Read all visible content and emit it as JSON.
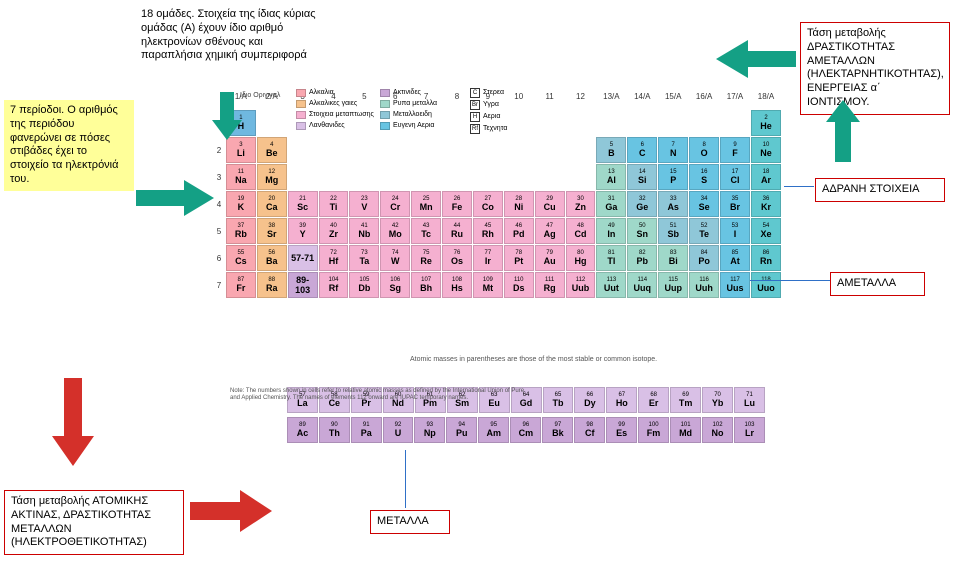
{
  "colors": {
    "alkali": "#f9a7b0",
    "alkaline": "#f6c28c",
    "transition": "#f5b0d0",
    "post": "#9fd8c9",
    "metalloid": "#8fc7d8",
    "nonmetal": "#68c4e2",
    "halogen": "#68c4e2",
    "noble": "#5fc8cf",
    "lanth": "#d9c0e6",
    "act": "#c9a7d6",
    "h": "#6fb8e0",
    "border_red": "#cc0000",
    "arrow_green": "#14a085",
    "arrow_red": "#d4302a",
    "yellow": "#ffff99",
    "conn": "#2f70c7"
  },
  "boxes": {
    "periods": "7 περίοδοι. Ο αριθμός της περιόδου φανερώνει σε πόσες στιβάδες έχει το στοιχείο τα ηλεκτρόνιά του.",
    "groups": "18 ομάδες. Στοιχεία της ίδιας κύριας ομάδας (Α) έχουν ίδιο αριθμό ηλεκτρονίων σθένους και παραπλήσια χημική συμπεριφορά",
    "nonmetal_trend": "Τάση μεταβολής ΔΡΑΣΤΙΚΟΤΗΤΑΣ ΑΜΕΤΑΛΛΩΝ (ΗΛΕΚΤΑΡΝΗΤΙΚΟΤΗΤΑΣ), ΕΝΕΡΓΕΙΑΣ α΄ ΙΟΝΤΙΣΜΟΥ.",
    "noble": "ΑΔΡΑΝΗ ΣΤΟΙΧΕΙΑ",
    "nonmetals": "ΑΜΕΤΑΛΛΑ",
    "metals": "ΜΕΤΑΛΛΑ",
    "metal_trend": "Τάση μεταβολής ΑΤΟΜΙΚΗΣ ΑΚΤΙΝΑΣ, ΔΡΑΣΤΙΚΟΤΗΤΑΣ ΜΕΤΑΛΛΩΝ (ΗΛΕΚΤΡΟΘΕΤΙΚΟΤΗΤΑΣ)"
  },
  "legend": {
    "title": "Ιδιο\nΟριγιναλ",
    "col1": [
      {
        "c": "#f9a7b0",
        "t": "Αλκαλια"
      },
      {
        "c": "#f6c28c",
        "t": "Αλκαλικες γαιες"
      },
      {
        "c": "#f5b0d0",
        "t": "Στοιχεια μεταπτωσης"
      },
      {
        "c": "#d9c0e6",
        "t": "Λανθανιδες"
      }
    ],
    "col2": [
      {
        "c": "#c9a7d6",
        "t": "Ακτινιδες"
      },
      {
        "c": "#9fd8c9",
        "t": "Ρυπα μεταλλα"
      },
      {
        "c": "#8fc7d8",
        "t": "Μεταλλοειδη"
      },
      {
        "c": "#68c4e2",
        "t": "Ευγενη Αερια"
      }
    ],
    "col3": [
      {
        "s": "C",
        "t": "Στερεα"
      },
      {
        "s": "Br",
        "t": "Υγρα"
      },
      {
        "s": "H",
        "t": "Αερια"
      },
      {
        "s": "Rf",
        "t": "Τεχνητα"
      }
    ]
  },
  "groups": [
    "1/A",
    "2/A",
    "3",
    "4",
    "5",
    "6",
    "7",
    "8",
    "9",
    "10",
    "11",
    "12",
    "13/A",
    "14/A",
    "15/A",
    "16/A",
    "17/A",
    "18/A"
  ],
  "elements": [
    [
      {
        "n": 1,
        "s": "H",
        "c": "h"
      },
      null,
      null,
      null,
      null,
      null,
      null,
      null,
      null,
      null,
      null,
      null,
      null,
      null,
      null,
      null,
      null,
      {
        "n": 2,
        "s": "He",
        "c": "noble"
      }
    ],
    [
      {
        "n": 3,
        "s": "Li",
        "c": "alkali"
      },
      {
        "n": 4,
        "s": "Be",
        "c": "alkaline"
      },
      null,
      null,
      null,
      null,
      null,
      null,
      null,
      null,
      null,
      null,
      {
        "n": 5,
        "s": "B",
        "c": "metalloid"
      },
      {
        "n": 6,
        "s": "C",
        "c": "nonmetal"
      },
      {
        "n": 7,
        "s": "N",
        "c": "nonmetal"
      },
      {
        "n": 8,
        "s": "O",
        "c": "nonmetal"
      },
      {
        "n": 9,
        "s": "F",
        "c": "nonmetal"
      },
      {
        "n": 10,
        "s": "Ne",
        "c": "noble"
      }
    ],
    [
      {
        "n": 11,
        "s": "Na",
        "c": "alkali"
      },
      {
        "n": 12,
        "s": "Mg",
        "c": "alkaline"
      },
      null,
      null,
      null,
      null,
      null,
      null,
      null,
      null,
      null,
      null,
      {
        "n": 13,
        "s": "Al",
        "c": "post"
      },
      {
        "n": 14,
        "s": "Si",
        "c": "metalloid"
      },
      {
        "n": 15,
        "s": "P",
        "c": "nonmetal"
      },
      {
        "n": 16,
        "s": "S",
        "c": "nonmetal"
      },
      {
        "n": 17,
        "s": "Cl",
        "c": "nonmetal"
      },
      {
        "n": 18,
        "s": "Ar",
        "c": "noble"
      }
    ],
    [
      {
        "n": 19,
        "s": "K",
        "c": "alkali"
      },
      {
        "n": 20,
        "s": "Ca",
        "c": "alkaline"
      },
      {
        "n": 21,
        "s": "Sc",
        "c": "transition"
      },
      {
        "n": 22,
        "s": "Ti",
        "c": "transition"
      },
      {
        "n": 23,
        "s": "V",
        "c": "transition"
      },
      {
        "n": 24,
        "s": "Cr",
        "c": "transition"
      },
      {
        "n": 25,
        "s": "Mn",
        "c": "transition"
      },
      {
        "n": 26,
        "s": "Fe",
        "c": "transition"
      },
      {
        "n": 27,
        "s": "Co",
        "c": "transition"
      },
      {
        "n": 28,
        "s": "Ni",
        "c": "transition"
      },
      {
        "n": 29,
        "s": "Cu",
        "c": "transition"
      },
      {
        "n": 30,
        "s": "Zn",
        "c": "transition"
      },
      {
        "n": 31,
        "s": "Ga",
        "c": "post"
      },
      {
        "n": 32,
        "s": "Ge",
        "c": "metalloid"
      },
      {
        "n": 33,
        "s": "As",
        "c": "metalloid"
      },
      {
        "n": 34,
        "s": "Se",
        "c": "nonmetal"
      },
      {
        "n": 35,
        "s": "Br",
        "c": "nonmetal"
      },
      {
        "n": 36,
        "s": "Kr",
        "c": "noble"
      }
    ],
    [
      {
        "n": 37,
        "s": "Rb",
        "c": "alkali"
      },
      {
        "n": 38,
        "s": "Sr",
        "c": "alkaline"
      },
      {
        "n": 39,
        "s": "Y",
        "c": "transition"
      },
      {
        "n": 40,
        "s": "Zr",
        "c": "transition"
      },
      {
        "n": 41,
        "s": "Nb",
        "c": "transition"
      },
      {
        "n": 42,
        "s": "Mo",
        "c": "transition"
      },
      {
        "n": 43,
        "s": "Tc",
        "c": "transition"
      },
      {
        "n": 44,
        "s": "Ru",
        "c": "transition"
      },
      {
        "n": 45,
        "s": "Rh",
        "c": "transition"
      },
      {
        "n": 46,
        "s": "Pd",
        "c": "transition"
      },
      {
        "n": 47,
        "s": "Ag",
        "c": "transition"
      },
      {
        "n": 48,
        "s": "Cd",
        "c": "transition"
      },
      {
        "n": 49,
        "s": "In",
        "c": "post"
      },
      {
        "n": 50,
        "s": "Sn",
        "c": "post"
      },
      {
        "n": 51,
        "s": "Sb",
        "c": "metalloid"
      },
      {
        "n": 52,
        "s": "Te",
        "c": "metalloid"
      },
      {
        "n": 53,
        "s": "I",
        "c": "nonmetal"
      },
      {
        "n": 54,
        "s": "Xe",
        "c": "noble"
      }
    ],
    [
      {
        "n": 55,
        "s": "Cs",
        "c": "alkali"
      },
      {
        "n": 56,
        "s": "Ba",
        "c": "alkaline"
      },
      {
        "n": "",
        "s": "57-71",
        "c": "lanth"
      },
      {
        "n": 72,
        "s": "Hf",
        "c": "transition"
      },
      {
        "n": 73,
        "s": "Ta",
        "c": "transition"
      },
      {
        "n": 74,
        "s": "W",
        "c": "transition"
      },
      {
        "n": 75,
        "s": "Re",
        "c": "transition"
      },
      {
        "n": 76,
        "s": "Os",
        "c": "transition"
      },
      {
        "n": 77,
        "s": "Ir",
        "c": "transition"
      },
      {
        "n": 78,
        "s": "Pt",
        "c": "transition"
      },
      {
        "n": 79,
        "s": "Au",
        "c": "transition"
      },
      {
        "n": 80,
        "s": "Hg",
        "c": "transition"
      },
      {
        "n": 81,
        "s": "Tl",
        "c": "post"
      },
      {
        "n": 82,
        "s": "Pb",
        "c": "post"
      },
      {
        "n": 83,
        "s": "Bi",
        "c": "post"
      },
      {
        "n": 84,
        "s": "Po",
        "c": "metalloid"
      },
      {
        "n": 85,
        "s": "At",
        "c": "nonmetal"
      },
      {
        "n": 86,
        "s": "Rn",
        "c": "noble"
      }
    ],
    [
      {
        "n": 87,
        "s": "Fr",
        "c": "alkali"
      },
      {
        "n": 88,
        "s": "Ra",
        "c": "alkaline"
      },
      {
        "n": "",
        "s": "89-103",
        "c": "act"
      },
      {
        "n": 104,
        "s": "Rf",
        "c": "transition"
      },
      {
        "n": 105,
        "s": "Db",
        "c": "transition"
      },
      {
        "n": 106,
        "s": "Sg",
        "c": "transition"
      },
      {
        "n": 107,
        "s": "Bh",
        "c": "transition"
      },
      {
        "n": 108,
        "s": "Hs",
        "c": "transition"
      },
      {
        "n": 109,
        "s": "Mt",
        "c": "transition"
      },
      {
        "n": 110,
        "s": "Ds",
        "c": "transition"
      },
      {
        "n": 111,
        "s": "Rg",
        "c": "transition"
      },
      {
        "n": 112,
        "s": "Uub",
        "c": "transition"
      },
      {
        "n": 113,
        "s": "Uut",
        "c": "post"
      },
      {
        "n": 114,
        "s": "Uuq",
        "c": "post"
      },
      {
        "n": 115,
        "s": "Uup",
        "c": "post"
      },
      {
        "n": 116,
        "s": "Uuh",
        "c": "post"
      },
      {
        "n": 117,
        "s": "Uus",
        "c": "nonmetal"
      },
      {
        "n": 118,
        "s": "Uuo",
        "c": "noble"
      }
    ]
  ],
  "lanth": [
    {
      "n": 57,
      "s": "La"
    },
    {
      "n": 58,
      "s": "Ce"
    },
    {
      "n": 59,
      "s": "Pr"
    },
    {
      "n": 60,
      "s": "Nd"
    },
    {
      "n": 61,
      "s": "Pm"
    },
    {
      "n": 62,
      "s": "Sm"
    },
    {
      "n": 63,
      "s": "Eu"
    },
    {
      "n": 64,
      "s": "Gd"
    },
    {
      "n": 65,
      "s": "Tb"
    },
    {
      "n": 66,
      "s": "Dy"
    },
    {
      "n": 67,
      "s": "Ho"
    },
    {
      "n": 68,
      "s": "Er"
    },
    {
      "n": 69,
      "s": "Tm"
    },
    {
      "n": 70,
      "s": "Yb"
    },
    {
      "n": 71,
      "s": "Lu"
    }
  ],
  "act": [
    {
      "n": 89,
      "s": "Ac"
    },
    {
      "n": 90,
      "s": "Th"
    },
    {
      "n": 91,
      "s": "Pa"
    },
    {
      "n": 92,
      "s": "U"
    },
    {
      "n": 93,
      "s": "Np"
    },
    {
      "n": 94,
      "s": "Pu"
    },
    {
      "n": 95,
      "s": "Am"
    },
    {
      "n": 96,
      "s": "Cm"
    },
    {
      "n": 97,
      "s": "Bk"
    },
    {
      "n": 98,
      "s": "Cf"
    },
    {
      "n": 99,
      "s": "Es"
    },
    {
      "n": 100,
      "s": "Fm"
    },
    {
      "n": 101,
      "s": "Md"
    },
    {
      "n": 102,
      "s": "No"
    },
    {
      "n": 103,
      "s": "Lr"
    }
  ],
  "note1": "Note: The numbers shown in cells refer to relative atomic masses as defined by the International Union of Pure and Applied Chemistry. The names of elements 112 onward are IUPAC temporary names.",
  "note2": "Atomic masses in parentheses are those of the most stable or common isotope."
}
